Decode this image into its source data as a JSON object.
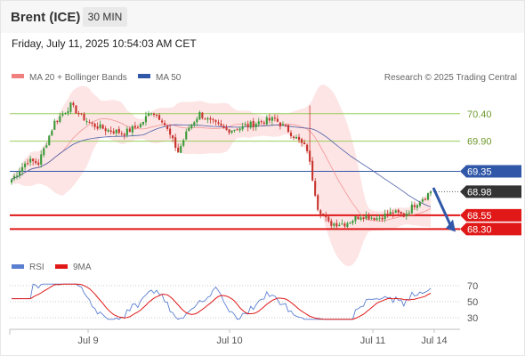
{
  "header": {
    "title": "Brent (ICE)",
    "timeframe": "30 MIN",
    "datetime": "Friday, July 11, 2025 10:54:03 AM CET"
  },
  "legend": {
    "ma20": "MA 20 + Bollinger Bands",
    "ma50": "MA 50",
    "credit": "Research © 2025 Trading Central",
    "rsi": "RSI",
    "rsi_ma": "9MA"
  },
  "colors": {
    "ma20": "#f08080",
    "bollinger_fill": "#fde0e0",
    "ma50": "#4a5fa8",
    "up": "#3a9a3a",
    "down": "#c8322c",
    "resistance": "#9acd5a",
    "pivot": "#3158a8",
    "support": "#e01818",
    "arrow": "#3158a8",
    "rsi": "#5b7fd0",
    "rsi_ma": "#e01818"
  },
  "chart_data": [
    {
      "type": "candlestick",
      "title": "Brent (ICE)",
      "x_ticks": [
        "Jul 9",
        "Jul 10",
        "Jul 11",
        "Jul 14"
      ],
      "ylim": [
        67.9,
        70.85
      ],
      "series": [
        {
          "name": "MA 20 + Bollinger Bands"
        },
        {
          "name": "MA 50"
        }
      ],
      "levels": [
        {
          "value": 70.4,
          "label": "70.40",
          "kind": "resistance"
        },
        {
          "value": 69.9,
          "label": "69.90",
          "kind": "resistance"
        },
        {
          "value": 69.35,
          "label": "69.35",
          "kind": "pivot"
        },
        {
          "value": 68.98,
          "label": "68.98",
          "kind": "last"
        },
        {
          "value": 68.55,
          "label": "68.55",
          "kind": "support"
        },
        {
          "value": 68.3,
          "label": "68.30",
          "kind": "support"
        }
      ]
    },
    {
      "type": "line",
      "series": [
        {
          "name": "RSI"
        },
        {
          "name": "9MA"
        }
      ],
      "ylim": [
        20,
        80
      ],
      "y_ticks": [
        "70",
        "50",
        "30"
      ]
    }
  ]
}
